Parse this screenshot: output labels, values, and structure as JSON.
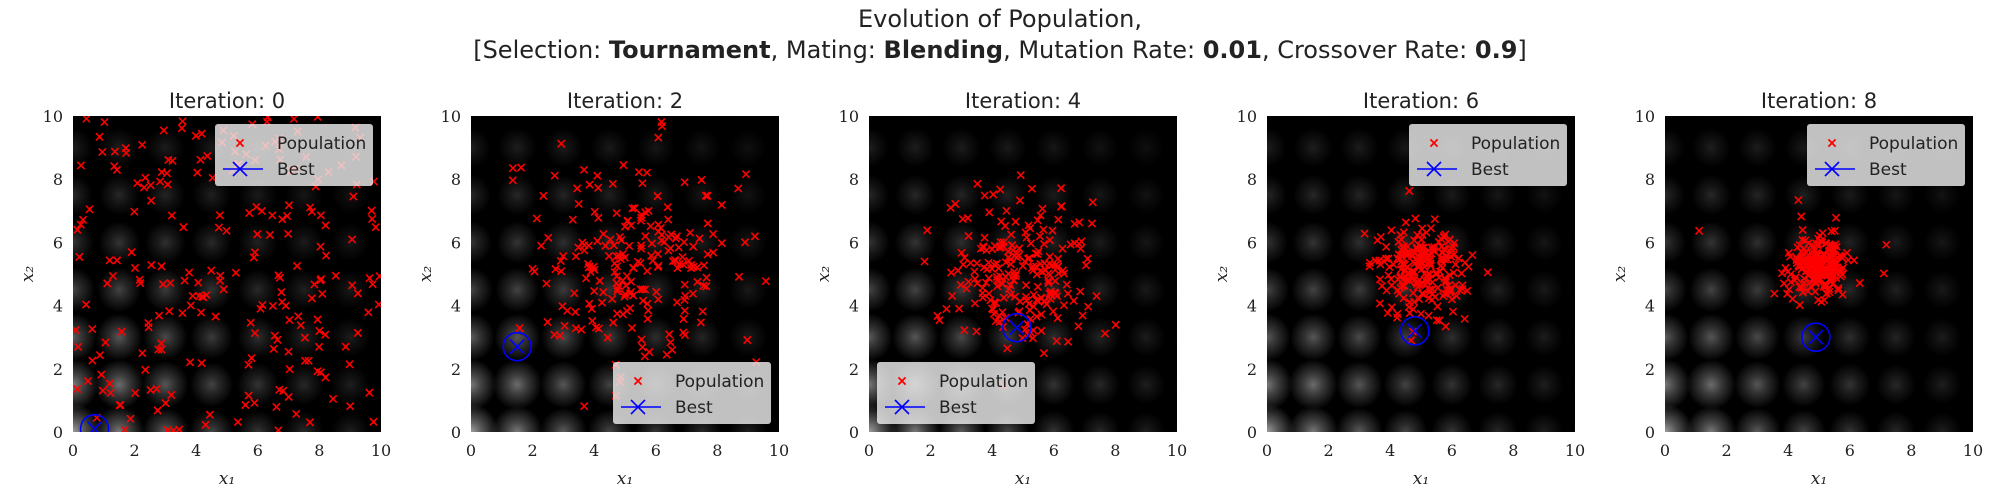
{
  "title": {
    "line1": "Evolution of Population,",
    "line2_parts": [
      {
        "text": "[Selection: ",
        "bold": false
      },
      {
        "text": "Tournament",
        "bold": true
      },
      {
        "text": ", Mating: ",
        "bold": false
      },
      {
        "text": "Blending",
        "bold": true
      },
      {
        "text": ", Mutation Rate: ",
        "bold": false
      },
      {
        "text": "0.01",
        "bold": true
      },
      {
        "text": ", Crossover Rate: ",
        "bold": false
      },
      {
        "text": "0.9",
        "bold": true
      },
      {
        "text": "]",
        "bold": false
      }
    ]
  },
  "colors": {
    "population": "#ff0000",
    "best": "#0000ff",
    "background": "#000000"
  },
  "chart_data": [
    {
      "type": "scatter",
      "title": "Iteration: 0",
      "xlabel": "x₁",
      "ylabel": "x₂",
      "xlim": [
        0,
        10
      ],
      "ylim": [
        0,
        10
      ],
      "xticks": [
        "0",
        "2",
        "4",
        "6",
        "8",
        "10"
      ],
      "yticks": [
        "0",
        "2",
        "4",
        "6",
        "8",
        "10"
      ],
      "legend_position": "top-right",
      "series": [
        {
          "name": "Population",
          "marker": "x",
          "spread": "uniform",
          "count": 230,
          "center": [
            5.0,
            5.0
          ],
          "radius": 5.0
        },
        {
          "name": "Best",
          "marker": "circled-x",
          "points": [
            [
              0.7,
              0.1
            ]
          ]
        }
      ]
    },
    {
      "type": "scatter",
      "title": "Iteration: 2",
      "xlabel": "x₁",
      "ylabel": "x₂",
      "xlim": [
        0,
        10
      ],
      "ylim": [
        0,
        10
      ],
      "xticks": [
        "0",
        "2",
        "4",
        "6",
        "8",
        "10"
      ],
      "yticks": [
        "0",
        "2",
        "4",
        "6",
        "8",
        "10"
      ],
      "legend_position": "bottom-right",
      "series": [
        {
          "name": "Population",
          "marker": "x",
          "spread": "cluster",
          "count": 230,
          "center": [
            5.3,
            5.2
          ],
          "radius": 2.2
        },
        {
          "name": "Best",
          "marker": "circled-x",
          "points": [
            [
              1.5,
              2.7
            ]
          ]
        }
      ]
    },
    {
      "type": "scatter",
      "title": "Iteration: 4",
      "xlabel": "x₁",
      "ylabel": "x₂",
      "xlim": [
        0,
        10
      ],
      "ylim": [
        0,
        10
      ],
      "xticks": [
        "0",
        "2",
        "4",
        "6",
        "8",
        "10"
      ],
      "yticks": [
        "0",
        "2",
        "4",
        "6",
        "8",
        "10"
      ],
      "legend_position": "bottom-left",
      "series": [
        {
          "name": "Population",
          "marker": "x",
          "spread": "cluster",
          "count": 230,
          "center": [
            5.0,
            5.0
          ],
          "radius": 1.6
        },
        {
          "name": "Best",
          "marker": "circled-x",
          "points": [
            [
              4.8,
              3.3
            ]
          ]
        }
      ]
    },
    {
      "type": "scatter",
      "title": "Iteration: 6",
      "xlabel": "x₁",
      "ylabel": "x₂",
      "xlim": [
        0,
        10
      ],
      "ylim": [
        0,
        10
      ],
      "xticks": [
        "0",
        "2",
        "4",
        "6",
        "8",
        "10"
      ],
      "yticks": [
        "0",
        "2",
        "4",
        "6",
        "8",
        "10"
      ],
      "legend_position": "top-right",
      "series": [
        {
          "name": "Population",
          "marker": "x",
          "spread": "cluster",
          "count": 230,
          "center": [
            5.0,
            5.1
          ],
          "radius": 1.0
        },
        {
          "name": "Best",
          "marker": "circled-x",
          "points": [
            [
              4.8,
              3.2
            ]
          ]
        }
      ]
    },
    {
      "type": "scatter",
      "title": "Iteration: 8",
      "xlabel": "x₁",
      "ylabel": "x₂",
      "xlim": [
        0,
        10
      ],
      "ylim": [
        0,
        10
      ],
      "xticks": [
        "0",
        "2",
        "4",
        "6",
        "8",
        "10"
      ],
      "yticks": [
        "0",
        "2",
        "4",
        "6",
        "8",
        "10"
      ],
      "legend_position": "top-right",
      "series": [
        {
          "name": "Population",
          "marker": "x",
          "spread": "cluster",
          "count": 230,
          "center": [
            5.0,
            5.3
          ],
          "radius": 0.65
        },
        {
          "name": "Best",
          "marker": "circled-x",
          "points": [
            [
              4.9,
              3.0
            ]
          ]
        }
      ]
    }
  ]
}
